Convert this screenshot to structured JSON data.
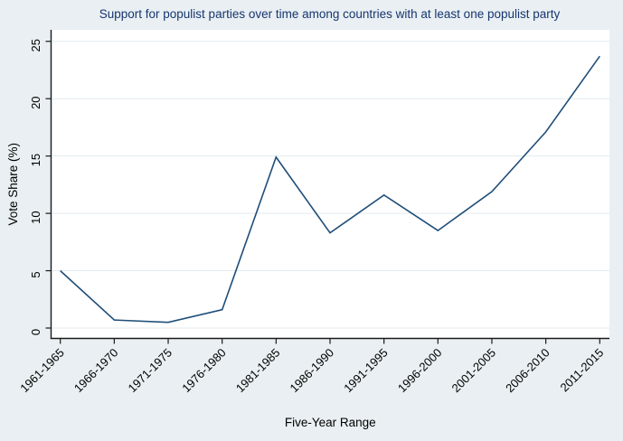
{
  "page": {
    "background_color": "#e9eff2",
    "plot_background_color": "#ffffff",
    "gridline_color": "#e0ebee",
    "axis_color": "#1a1a1a",
    "tick_label_color": "#000000",
    "title_color": "#16356f"
  },
  "chart_data": {
    "type": "line",
    "title": "Support for populist parties over time among countries with at least one populist party",
    "xlabel": "Five-Year Range",
    "ylabel": "Vote Share (%)",
    "categories": [
      "1961-1965",
      "1966-1970",
      "1971-1975",
      "1976-1980",
      "1981-1985",
      "1986-1990",
      "1991-1995",
      "1996-2000",
      "2001-2005",
      "2006-2010",
      "2011-2015"
    ],
    "values": [
      5.0,
      0.7,
      0.5,
      1.6,
      14.9,
      8.3,
      11.6,
      8.5,
      11.9,
      17.1,
      23.7
    ],
    "ylim": [
      0,
      25
    ],
    "yticks": [
      0,
      5,
      10,
      15,
      20,
      25
    ],
    "grid": "horizontal",
    "legend_position": "none",
    "line_color": "#1f4e79"
  }
}
